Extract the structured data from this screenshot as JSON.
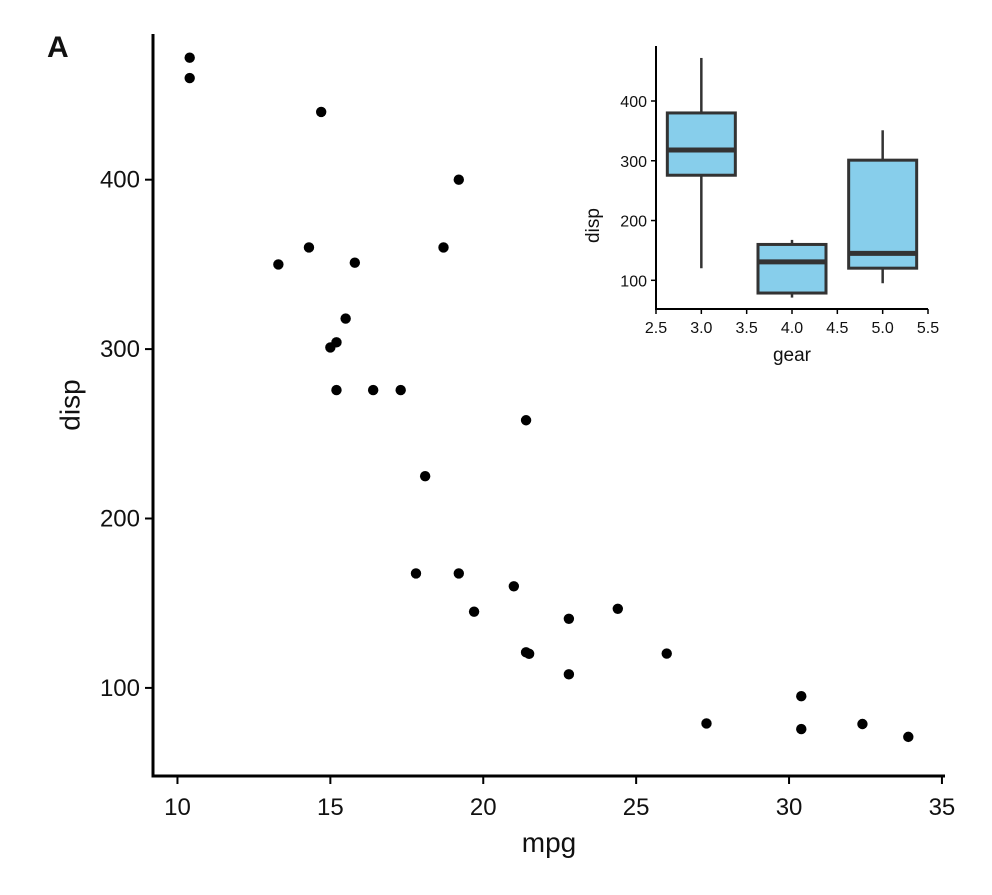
{
  "panel_label": "A",
  "chart_data": [
    {
      "type": "scatter",
      "title": "",
      "xlabel": "mpg",
      "ylabel": "disp",
      "xlim": [
        9.2,
        35.1
      ],
      "ylim": [
        48,
        486
      ],
      "xticks": [
        10,
        15,
        20,
        25,
        30,
        35
      ],
      "xtick_labels": [
        "10",
        "15",
        "20",
        "25",
        "30",
        "35"
      ],
      "yticks": [
        100,
        200,
        300,
        400
      ],
      "ytick_labels": [
        "100",
        "200",
        "300",
        "400"
      ],
      "grid": false,
      "point_color": "#000000",
      "points": [
        {
          "x": 10.4,
          "y": 472
        },
        {
          "x": 10.4,
          "y": 460
        },
        {
          "x": 14.7,
          "y": 440
        },
        {
          "x": 19.2,
          "y": 400
        },
        {
          "x": 14.3,
          "y": 360
        },
        {
          "x": 18.7,
          "y": 360
        },
        {
          "x": 13.3,
          "y": 350
        },
        {
          "x": 15.8,
          "y": 351
        },
        {
          "x": 15.5,
          "y": 318
        },
        {
          "x": 15.2,
          "y": 304
        },
        {
          "x": 15.0,
          "y": 301
        },
        {
          "x": 15.2,
          "y": 275.8
        },
        {
          "x": 16.4,
          "y": 275.8
        },
        {
          "x": 17.3,
          "y": 275.8
        },
        {
          "x": 21.4,
          "y": 258
        },
        {
          "x": 18.1,
          "y": 225
        },
        {
          "x": 17.8,
          "y": 167.6
        },
        {
          "x": 19.2,
          "y": 167.6
        },
        {
          "x": 21.0,
          "y": 160
        },
        {
          "x": 19.7,
          "y": 145
        },
        {
          "x": 22.8,
          "y": 140.8
        },
        {
          "x": 24.4,
          "y": 146.7
        },
        {
          "x": 21.4,
          "y": 121
        },
        {
          "x": 21.5,
          "y": 120.1
        },
        {
          "x": 26.0,
          "y": 120.3
        },
        {
          "x": 22.8,
          "y": 108
        },
        {
          "x": 30.4,
          "y": 95.1
        },
        {
          "x": 27.3,
          "y": 79
        },
        {
          "x": 32.4,
          "y": 78.7
        },
        {
          "x": 30.4,
          "y": 75.7
        },
        {
          "x": 33.9,
          "y": 71.1
        }
      ]
    },
    {
      "type": "box",
      "title": "",
      "xlabel": "gear",
      "ylabel": "disp",
      "xlim": [
        2.5,
        5.5
      ],
      "ylim": [
        52,
        492
      ],
      "xticks": [
        2.5,
        3.0,
        3.5,
        4.0,
        4.5,
        5.0,
        5.5
      ],
      "xtick_labels": [
        "2.5",
        "3.0",
        "3.5",
        "4.0",
        "4.5",
        "5.0",
        "5.5"
      ],
      "yticks": [
        100,
        200,
        300,
        400
      ],
      "ytick_labels": [
        "100",
        "200",
        "300",
        "400"
      ],
      "fill_color": "#87CEEB",
      "edge_color": "#333333",
      "groups": [
        {
          "x": 3.0,
          "min": 120.1,
          "q1": 275.8,
          "median": 318,
          "q3": 380,
          "max": 472
        },
        {
          "x": 4.0,
          "min": 71.1,
          "q1": 78.7,
          "median": 130.9,
          "q3": 160,
          "max": 167.6
        },
        {
          "x": 5.0,
          "min": 95.1,
          "q1": 120.3,
          "median": 145,
          "q3": 301,
          "max": 351
        }
      ]
    }
  ]
}
